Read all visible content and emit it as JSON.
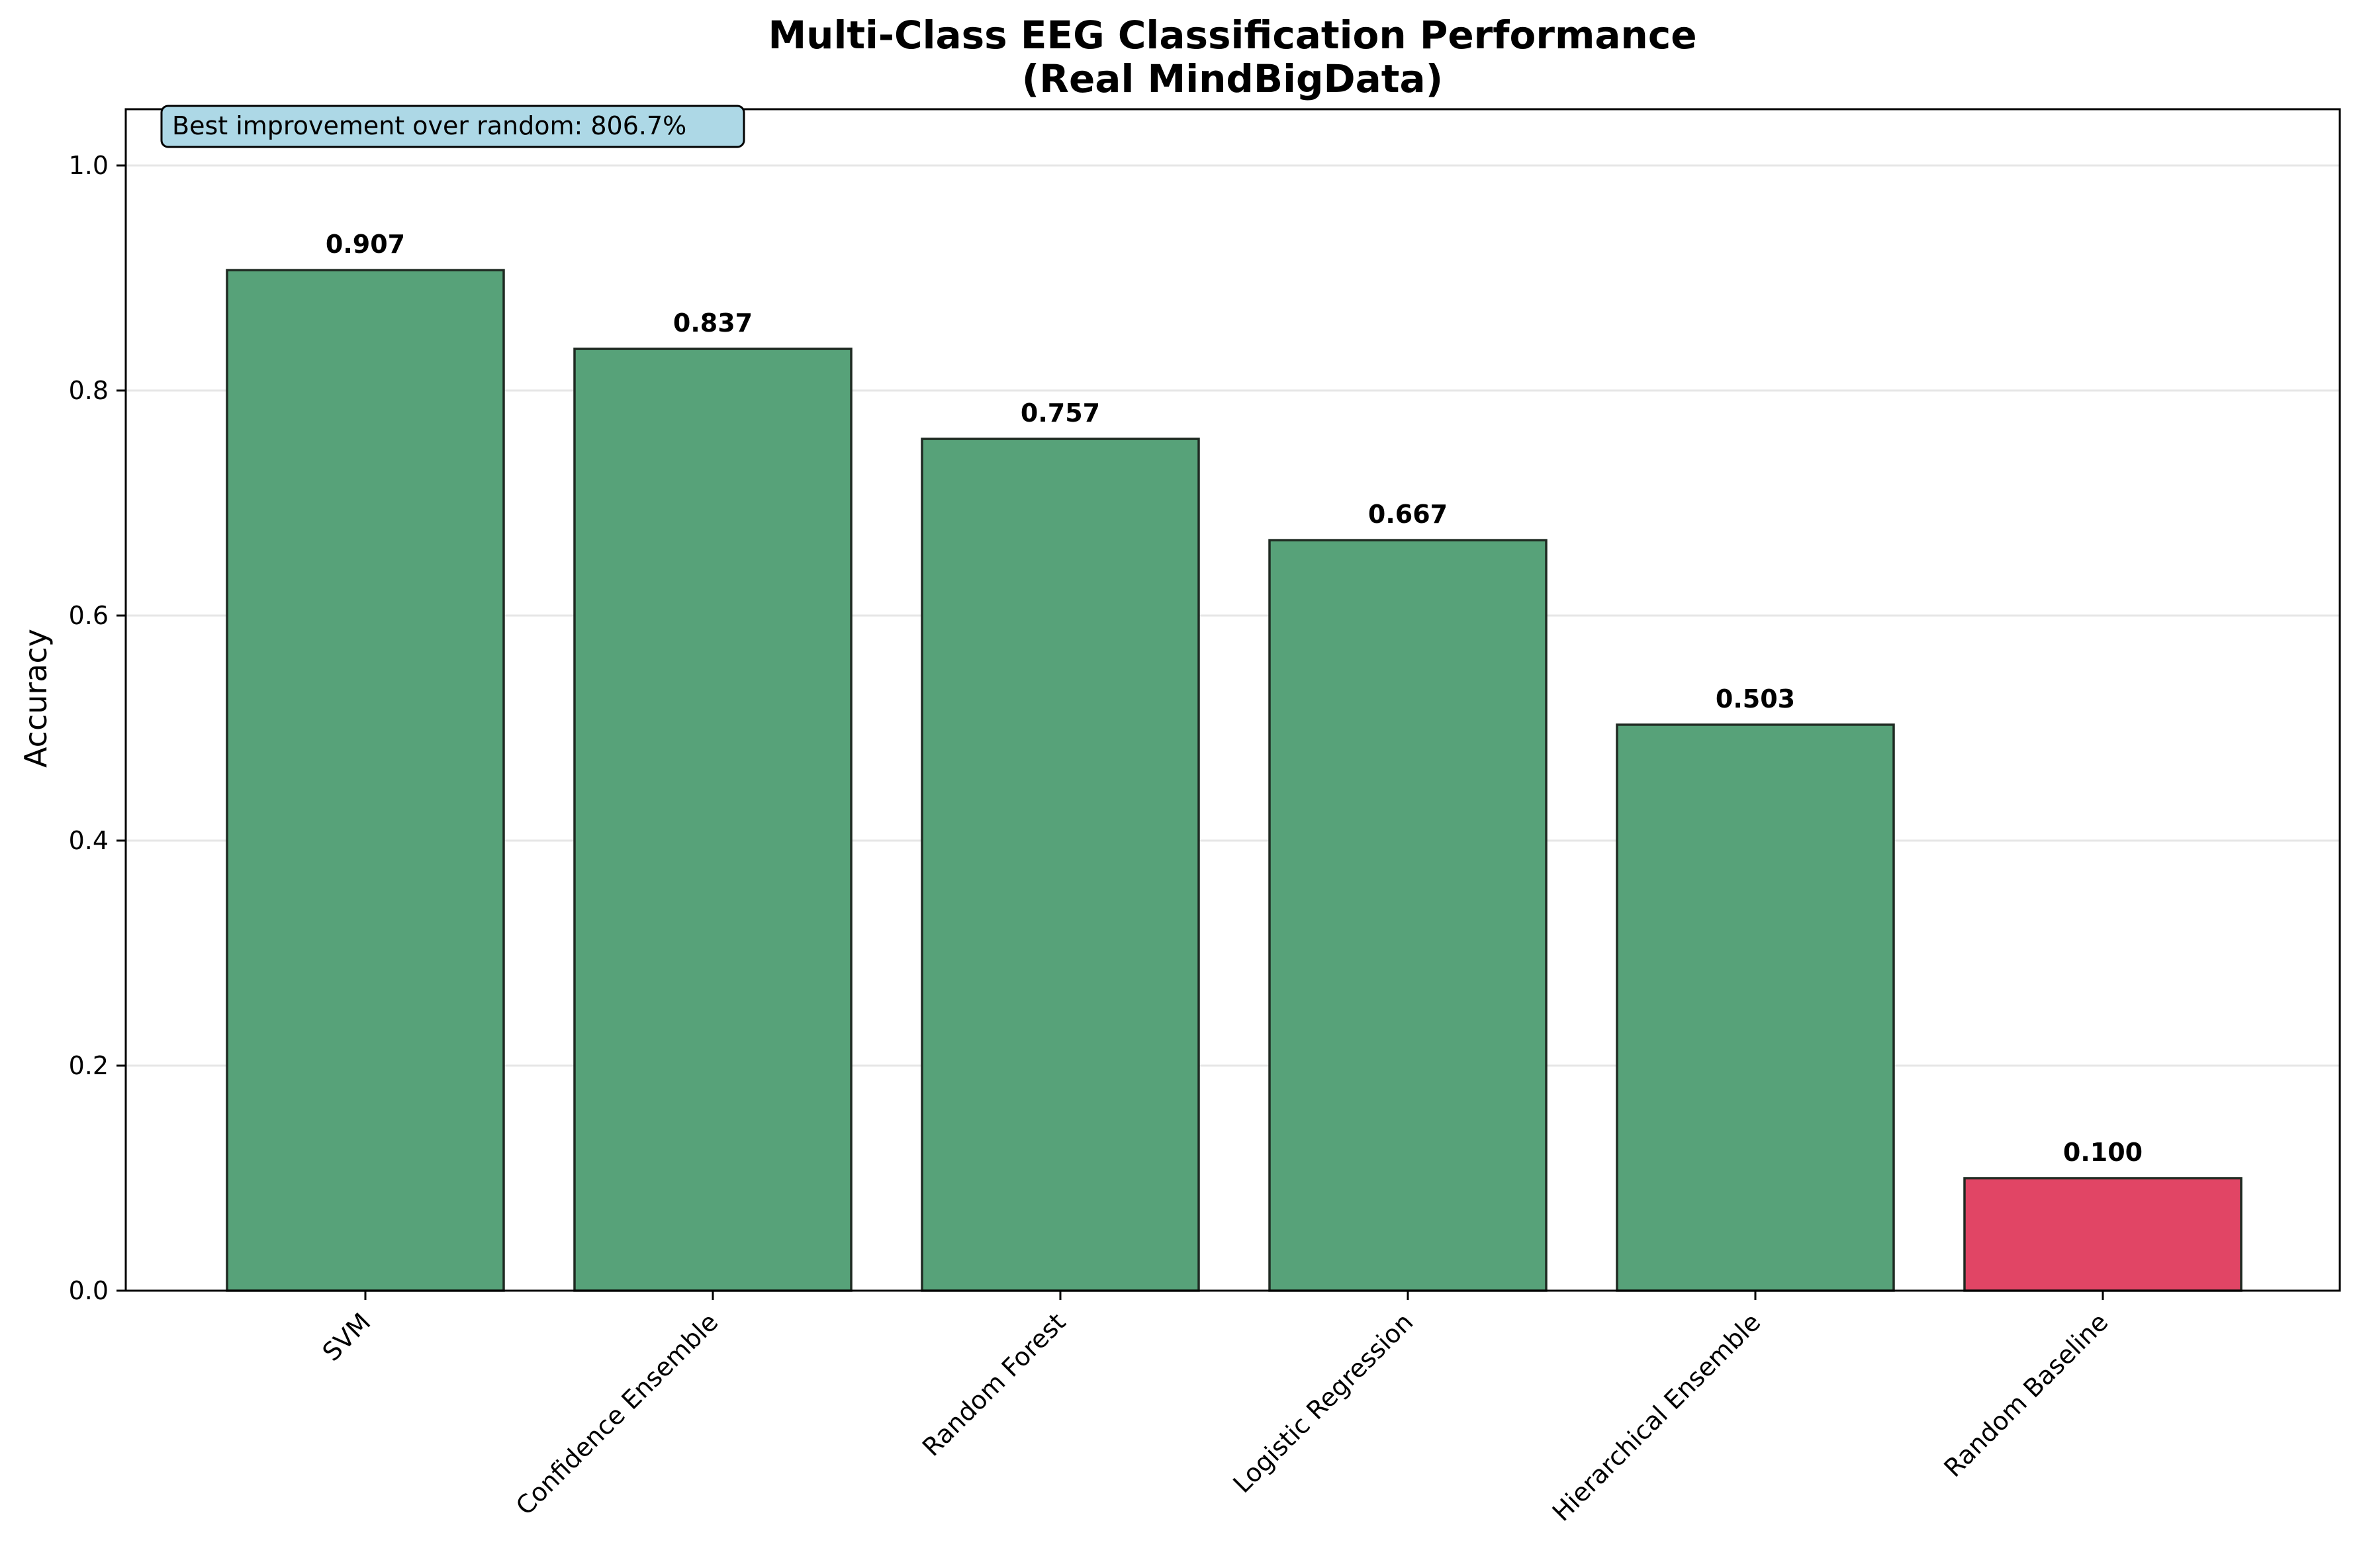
{
  "chart_data": {
    "type": "bar",
    "title": "Multi-Class EEG Classification Performance",
    "subtitle": "(Real MindBigData)",
    "xlabel": "",
    "ylabel": "Accuracy",
    "ylim": [
      0,
      1.05
    ],
    "yticks": [
      0.0,
      0.2,
      0.4,
      0.6,
      0.8,
      1.0
    ],
    "ytick_labels": [
      "0.0",
      "0.2",
      "0.4",
      "0.6",
      "0.8",
      "1.0"
    ],
    "grid": "y",
    "categories": [
      "SVM",
      "Confidence Ensemble",
      "Random Forest",
      "Logistic Regression",
      "Hierarchical Ensemble",
      "Random Baseline"
    ],
    "values": [
      0.907,
      0.837,
      0.757,
      0.667,
      0.503,
      0.1
    ],
    "value_labels": [
      "0.907",
      "0.837",
      "0.757",
      "0.667",
      "0.503",
      "0.100"
    ],
    "bar_colors": [
      "#57a279",
      "#57a279",
      "#57a279",
      "#57a279",
      "#57a279",
      "#e14565"
    ],
    "bar_edge_color": "#1f2a22",
    "annotation": "Best improvement over random: 806.7%",
    "annotation_bg": "#add8e6",
    "grid_color": "#e6e6e6"
  }
}
